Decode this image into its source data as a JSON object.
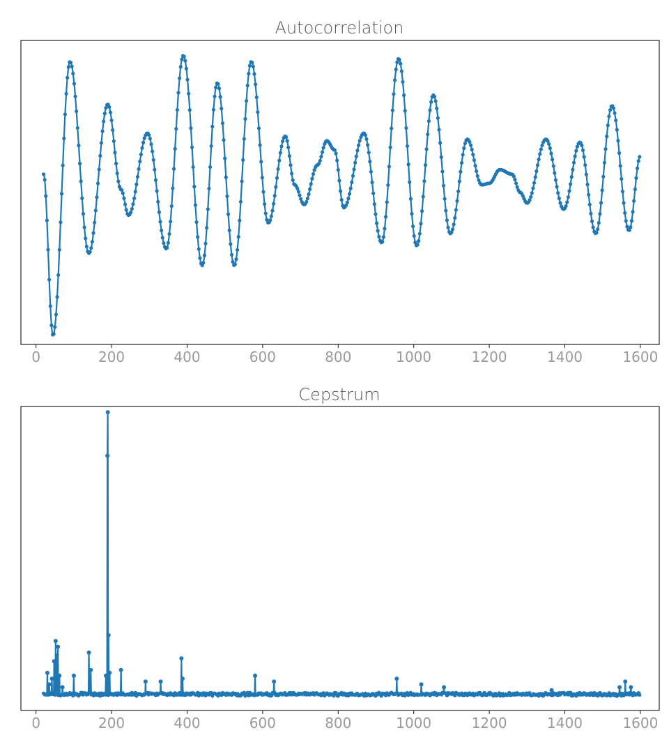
{
  "chart_data": [
    {
      "type": "line",
      "title": "Autocorrelation",
      "xlabel": "",
      "ylabel": "",
      "xlim": [
        -40,
        1650
      ],
      "ylim": [
        -1.0,
        1.0
      ],
      "x_ticks": [
        0,
        200,
        400,
        600,
        800,
        1000,
        1200,
        1400,
        1600
      ],
      "y_ticks_shown": false,
      "grid": false,
      "color": "#1f77b4",
      "marker": "dot",
      "x_range": [
        20,
        1600
      ],
      "x_step": 1,
      "turning_points": [
        [
          20,
          0.12
        ],
        [
          45,
          -0.94
        ],
        [
          90,
          0.86
        ],
        [
          140,
          -0.4
        ],
        [
          190,
          0.58
        ],
        [
          225,
          0.02
        ],
        [
          245,
          -0.15
        ],
        [
          295,
          0.39
        ],
        [
          345,
          -0.37
        ],
        [
          390,
          0.9
        ],
        [
          440,
          -0.48
        ],
        [
          480,
          0.72
        ],
        [
          525,
          -0.48
        ],
        [
          570,
          0.86
        ],
        [
          615,
          -0.2
        ],
        [
          660,
          0.37
        ],
        [
          685,
          0.05
        ],
        [
          710,
          -0.08
        ],
        [
          745,
          0.18
        ],
        [
          770,
          0.34
        ],
        [
          790,
          0.28
        ],
        [
          815,
          -0.1
        ],
        [
          868,
          0.39
        ],
        [
          915,
          -0.33
        ],
        [
          960,
          0.88
        ],
        [
          1008,
          -0.35
        ],
        [
          1052,
          0.64
        ],
        [
          1097,
          -0.27
        ],
        [
          1142,
          0.35
        ],
        [
          1180,
          0.05
        ],
        [
          1200,
          0.06
        ],
        [
          1228,
          0.15
        ],
        [
          1260,
          0.12
        ],
        [
          1282,
          0.0
        ],
        [
          1300,
          -0.07
        ],
        [
          1350,
          0.35
        ],
        [
          1397,
          -0.11
        ],
        [
          1440,
          0.33
        ],
        [
          1482,
          -0.27
        ],
        [
          1525,
          0.57
        ],
        [
          1570,
          -0.25
        ],
        [
          1600,
          0.24
        ]
      ]
    },
    {
      "type": "line",
      "title": "Cepstrum",
      "xlabel": "",
      "ylabel": "",
      "xlim": [
        -40,
        1650
      ],
      "ylim": [
        -0.05,
        1.0
      ],
      "x_ticks": [
        0,
        200,
        400,
        600,
        800,
        1000,
        1200,
        1400,
        1600
      ],
      "y_ticks_shown": false,
      "grid": false,
      "color": "#1f77b4",
      "marker": "dot",
      "x_range": [
        20,
        1600
      ],
      "x_step": 1,
      "baseline": 0.0,
      "spikes": [
        [
          30,
          0.08
        ],
        [
          35,
          0.04
        ],
        [
          42,
          0.06
        ],
        [
          48,
          0.12
        ],
        [
          52,
          0.19
        ],
        [
          55,
          0.14
        ],
        [
          58,
          0.17
        ],
        [
          62,
          0.07
        ],
        [
          70,
          0.03
        ],
        [
          100,
          0.07
        ],
        [
          140,
          0.15
        ],
        [
          145,
          0.09
        ],
        [
          185,
          0.07
        ],
        [
          189,
          0.83
        ],
        [
          190,
          0.98
        ],
        [
          192,
          0.21
        ],
        [
          195,
          0.08
        ],
        [
          225,
          0.09
        ],
        [
          290,
          0.05
        ],
        [
          330,
          0.05
        ],
        [
          385,
          0.13
        ],
        [
          388,
          0.06
        ],
        [
          580,
          0.07
        ],
        [
          630,
          0.05
        ],
        [
          955,
          0.06
        ],
        [
          1020,
          0.04
        ],
        [
          1080,
          0.03
        ],
        [
          1365,
          0.02
        ],
        [
          1545,
          0.03
        ],
        [
          1560,
          0.05
        ],
        [
          1575,
          0.03
        ]
      ]
    }
  ]
}
